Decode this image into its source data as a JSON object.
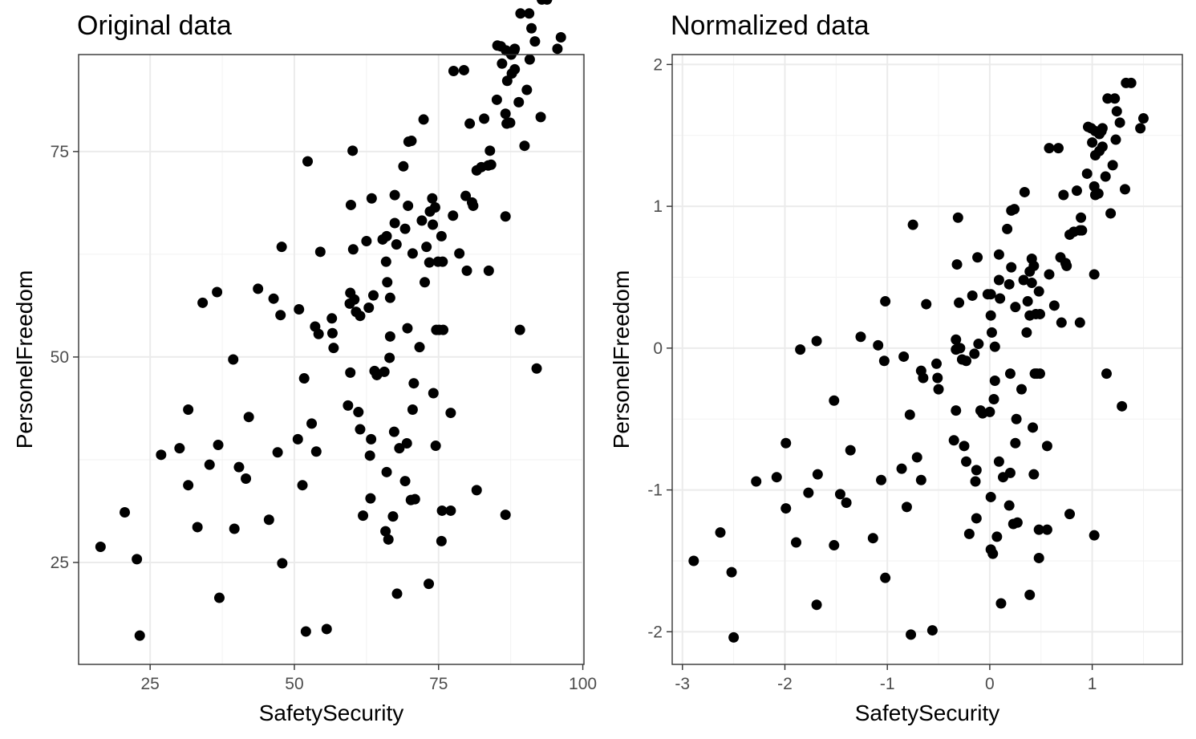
{
  "chart_data": [
    {
      "type": "scatter",
      "title": "Original data",
      "xlabel": "SafetySecurity",
      "ylabel": "PersonelFreedom",
      "xlim": [
        12.6,
        100.2
      ],
      "ylim": [
        12.6,
        86.8
      ],
      "xticks": [
        25,
        50,
        75,
        100
      ],
      "yticks": [
        25,
        50,
        75
      ],
      "grid": true,
      "points": [
        [
          16.4,
          26.9
        ],
        [
          20.6,
          31.1
        ],
        [
          22.7,
          25.4
        ],
        [
          23.2,
          16.1
        ],
        [
          26.9,
          38.1
        ],
        [
          30.1,
          38.9
        ],
        [
          31.6,
          43.6
        ],
        [
          31.6,
          34.4
        ],
        [
          33.2,
          29.3
        ],
        [
          34.1,
          56.6
        ],
        [
          35.3,
          36.9
        ],
        [
          36.6,
          57.9
        ],
        [
          36.8,
          39.3
        ],
        [
          37.0,
          20.7
        ],
        [
          39.4,
          49.7
        ],
        [
          39.6,
          29.1
        ],
        [
          40.4,
          36.6
        ],
        [
          41.6,
          35.2
        ],
        [
          42.1,
          42.7
        ],
        [
          43.7,
          58.3
        ],
        [
          45.6,
          30.2
        ],
        [
          46.4,
          57.1
        ],
        [
          47.1,
          38.4
        ],
        [
          47.6,
          55.1
        ],
        [
          47.8,
          63.4
        ],
        [
          47.9,
          24.9
        ],
        [
          50.6,
          40.0
        ],
        [
          50.8,
          55.8
        ],
        [
          51.4,
          34.4
        ],
        [
          51.7,
          47.4
        ],
        [
          52.0,
          16.6
        ],
        [
          52.3,
          73.8
        ],
        [
          53.0,
          41.9
        ],
        [
          53.6,
          53.7
        ],
        [
          53.8,
          38.5
        ],
        [
          54.2,
          52.8
        ],
        [
          54.5,
          62.8
        ],
        [
          55.6,
          16.9
        ],
        [
          56.5,
          54.7
        ],
        [
          56.6,
          52.9
        ],
        [
          56.8,
          51.1
        ],
        [
          59.3,
          44.1
        ],
        [
          59.6,
          56.5
        ],
        [
          59.7,
          48.1
        ],
        [
          59.7,
          57.8
        ],
        [
          59.8,
          68.5
        ],
        [
          60.1,
          75.1
        ],
        [
          60.2,
          63.1
        ],
        [
          60.4,
          57.0
        ],
        [
          60.7,
          55.5
        ],
        [
          61.1,
          43.3
        ],
        [
          61.4,
          55.0
        ],
        [
          61.4,
          41.2
        ],
        [
          61.9,
          30.7
        ],
        [
          62.5,
          64.1
        ],
        [
          62.9,
          56.0
        ],
        [
          63.1,
          38.0
        ],
        [
          63.2,
          32.8
        ],
        [
          63.3,
          40.0
        ],
        [
          63.4,
          69.3
        ],
        [
          63.7,
          57.5
        ],
        [
          63.9,
          48.3
        ],
        [
          64.3,
          47.8
        ],
        [
          65.3,
          64.3
        ],
        [
          65.6,
          48.2
        ],
        [
          65.8,
          28.8
        ],
        [
          65.9,
          61.6
        ],
        [
          66.0,
          64.7
        ],
        [
          66.0,
          36.0
        ],
        [
          66.1,
          59.1
        ],
        [
          66.3,
          27.8
        ],
        [
          66.5,
          49.9
        ],
        [
          66.6,
          57.2
        ],
        [
          66.6,
          52.5
        ],
        [
          67.1,
          30.6
        ],
        [
          67.3,
          40.9
        ],
        [
          67.4,
          69.7
        ],
        [
          67.4,
          66.3
        ],
        [
          67.7,
          63.7
        ],
        [
          67.8,
          21.2
        ],
        [
          68.2,
          38.9
        ],
        [
          68.9,
          73.2
        ],
        [
          69.2,
          34.9
        ],
        [
          69.2,
          65.6
        ],
        [
          69.5,
          39.5
        ],
        [
          69.6,
          53.5
        ],
        [
          69.7,
          68.4
        ],
        [
          69.8,
          76.2
        ],
        [
          70.2,
          32.6
        ],
        [
          70.3,
          76.3
        ],
        [
          70.5,
          43.6
        ],
        [
          70.5,
          62.6
        ],
        [
          70.7,
          46.8
        ],
        [
          70.9,
          32.7
        ],
        [
          71.7,
          51.2
        ],
        [
          72.1,
          66.6
        ],
        [
          72.4,
          78.9
        ],
        [
          72.6,
          59.1
        ],
        [
          72.9,
          63.4
        ],
        [
          73.3,
          22.4
        ],
        [
          73.4,
          61.5
        ],
        [
          73.5,
          67.7
        ],
        [
          73.9,
          69.3
        ],
        [
          74.0,
          66.1
        ],
        [
          74.1,
          45.6
        ],
        [
          74.4,
          68.2
        ],
        [
          74.5,
          39.2
        ],
        [
          74.6,
          53.3
        ],
        [
          74.9,
          61.6
        ],
        [
          75.1,
          53.3
        ],
        [
          75.5,
          27.6
        ],
        [
          75.5,
          64.7
        ],
        [
          75.6,
          31.3
        ],
        [
          75.7,
          61.6
        ],
        [
          75.8,
          53.3
        ],
        [
          77.1,
          31.3
        ],
        [
          77.1,
          43.2
        ],
        [
          77.5,
          67.2
        ],
        [
          77.6,
          84.8
        ],
        [
          78.6,
          62.6
        ],
        [
          79.4,
          84.9
        ],
        [
          79.7,
          69.6
        ],
        [
          79.9,
          60.5
        ],
        [
          80.4,
          78.4
        ],
        [
          80.8,
          68.8
        ],
        [
          81.0,
          68.4
        ],
        [
          81.6,
          33.8
        ],
        [
          81.6,
          72.7
        ],
        [
          82.4,
          73.1
        ],
        [
          82.9,
          79.0
        ],
        [
          83.6,
          73.3
        ],
        [
          83.7,
          60.5
        ],
        [
          83.9,
          75.1
        ],
        [
          84.1,
          73.4
        ],
        [
          85.1,
          81.3
        ],
        [
          85.2,
          87.9
        ],
        [
          85.8,
          87.8
        ],
        [
          86.0,
          85.7
        ],
        [
          86.6,
          30.8
        ],
        [
          86.6,
          67.1
        ],
        [
          86.6,
          79.6
        ],
        [
          86.7,
          87.3
        ],
        [
          86.8,
          78.4
        ],
        [
          86.9,
          83.6
        ],
        [
          87.4,
          78.5
        ],
        [
          87.6,
          86.8
        ],
        [
          87.7,
          84.5
        ],
        [
          88.1,
          87.3
        ],
        [
          88.2,
          87.5
        ],
        [
          88.2,
          85.0
        ],
        [
          88.9,
          81.0
        ],
        [
          89.1,
          53.3
        ],
        [
          89.2,
          91.8
        ],
        [
          89.9,
          75.7
        ],
        [
          90.3,
          82.5
        ],
        [
          90.7,
          91.8
        ],
        [
          90.8,
          86.2
        ],
        [
          91.1,
          90.0
        ],
        [
          91.7,
          88.4
        ],
        [
          92.0,
          48.6
        ],
        [
          92.7,
          79.2
        ],
        [
          92.9,
          93.5
        ],
        [
          93.8,
          93.5
        ],
        [
          95.6,
          87.5
        ],
        [
          96.2,
          88.9
        ]
      ]
    },
    {
      "type": "scatter",
      "title": "Normalized data",
      "xlabel": "SafetySecurity",
      "ylabel": "PersonelFreedom",
      "xlim": [
        -3.1,
        1.88
      ],
      "ylim": [
        -2.23,
        2.07
      ],
      "xticks": [
        -3,
        -2,
        -1,
        0,
        1
      ],
      "yticks": [
        -2,
        -1,
        0,
        1,
        2
      ],
      "grid": true,
      "points": [
        [
          -2.89,
          -1.5
        ],
        [
          -2.63,
          -1.3
        ],
        [
          -2.52,
          -1.58
        ],
        [
          -2.5,
          -2.04
        ],
        [
          -2.28,
          -0.94
        ],
        [
          -2.08,
          -0.91
        ],
        [
          -1.99,
          -0.67
        ],
        [
          -1.99,
          -1.13
        ],
        [
          -1.89,
          -1.37
        ],
        [
          -1.85,
          -0.01
        ],
        [
          -1.77,
          -1.02
        ],
        [
          -1.69,
          0.05
        ],
        [
          -1.68,
          -0.89
        ],
        [
          -1.69,
          -1.81
        ],
        [
          -1.52,
          -0.37
        ],
        [
          -1.52,
          -1.39
        ],
        [
          -1.46,
          -1.03
        ],
        [
          -1.4,
          -1.09
        ],
        [
          -1.36,
          -0.72
        ],
        [
          -1.26,
          0.08
        ],
        [
          -1.14,
          -1.34
        ],
        [
          -1.09,
          0.02
        ],
        [
          -1.06,
          -0.93
        ],
        [
          -1.03,
          -0.09
        ],
        [
          -1.02,
          0.33
        ],
        [
          -1.02,
          -1.62
        ],
        [
          -0.86,
          -0.85
        ],
        [
          -0.84,
          -0.06
        ],
        [
          -0.81,
          -1.12
        ],
        [
          -0.78,
          -0.47
        ],
        [
          -0.77,
          -2.02
        ],
        [
          -0.75,
          0.87
        ],
        [
          -0.71,
          -0.77
        ],
        [
          -0.67,
          -0.16
        ],
        [
          -0.67,
          -0.93
        ],
        [
          -0.65,
          -0.21
        ],
        [
          -0.62,
          0.31
        ],
        [
          -0.56,
          -1.99
        ],
        [
          -0.52,
          -0.11
        ],
        [
          -0.51,
          -0.21
        ],
        [
          -0.5,
          -0.29
        ],
        [
          -0.35,
          -0.65
        ],
        [
          -0.33,
          -0.01
        ],
        [
          -0.33,
          -0.44
        ],
        [
          -0.33,
          0.06
        ],
        [
          -0.32,
          0.59
        ],
        [
          -0.31,
          0.92
        ],
        [
          -0.3,
          0.32
        ],
        [
          -0.29,
          0.0
        ],
        [
          -0.27,
          -0.08
        ],
        [
          -0.25,
          -0.69
        ],
        [
          -0.23,
          -0.09
        ],
        [
          -0.23,
          -0.8
        ],
        [
          -0.2,
          -1.31
        ],
        [
          -0.17,
          0.37
        ],
        [
          -0.15,
          -0.04
        ],
        [
          -0.14,
          -0.94
        ],
        [
          -0.13,
          -1.2
        ],
        [
          -0.13,
          -0.86
        ],
        [
          -0.12,
          0.64
        ],
        [
          -0.11,
          0.03
        ],
        [
          -0.09,
          -0.44
        ],
        [
          -0.07,
          -0.46
        ],
        [
          -0.02,
          0.38
        ],
        [
          0.0,
          -0.45
        ],
        [
          0.01,
          -1.42
        ],
        [
          0.01,
          0.23
        ],
        [
          0.01,
          0.38
        ],
        [
          0.01,
          -1.05
        ],
        [
          0.02,
          0.11
        ],
        [
          0.03,
          -1.45
        ],
        [
          0.04,
          -0.36
        ],
        [
          0.05,
          0.01
        ],
        [
          0.05,
          -0.23
        ],
        [
          0.07,
          -1.33
        ],
        [
          0.09,
          -0.8
        ],
        [
          0.09,
          0.66
        ],
        [
          0.09,
          0.48
        ],
        [
          0.1,
          0.35
        ],
        [
          0.11,
          -1.8
        ],
        [
          0.13,
          -0.91
        ],
        [
          0.17,
          0.84
        ],
        [
          0.19,
          -1.11
        ],
        [
          0.19,
          0.45
        ],
        [
          0.2,
          -0.88
        ],
        [
          0.2,
          -0.18
        ],
        [
          0.21,
          0.57
        ],
        [
          0.21,
          0.97
        ],
        [
          0.23,
          -1.24
        ],
        [
          0.24,
          0.98
        ],
        [
          0.25,
          -0.67
        ],
        [
          0.25,
          0.29
        ],
        [
          0.26,
          -0.5
        ],
        [
          0.27,
          -1.23
        ],
        [
          0.31,
          -0.29
        ],
        [
          0.33,
          0.48
        ],
        [
          0.34,
          1.1
        ],
        [
          0.36,
          0.11
        ],
        [
          0.37,
          0.33
        ],
        [
          0.39,
          -1.74
        ],
        [
          0.39,
          0.23
        ],
        [
          0.39,
          0.54
        ],
        [
          0.41,
          0.63
        ],
        [
          0.41,
          0.46
        ],
        [
          0.42,
          -0.56
        ],
        [
          0.43,
          0.58
        ],
        [
          0.43,
          -0.89
        ],
        [
          0.44,
          -0.18
        ],
        [
          0.45,
          0.24
        ],
        [
          0.46,
          -0.18
        ],
        [
          0.48,
          -1.48
        ],
        [
          0.48,
          0.4
        ],
        [
          0.48,
          -1.28
        ],
        [
          0.49,
          0.24
        ],
        [
          0.49,
          -0.18
        ],
        [
          0.56,
          -1.28
        ],
        [
          0.56,
          -0.69
        ],
        [
          0.58,
          0.52
        ],
        [
          0.58,
          1.41
        ],
        [
          0.63,
          0.3
        ],
        [
          0.67,
          1.41
        ],
        [
          0.69,
          0.64
        ],
        [
          0.7,
          0.18
        ],
        [
          0.72,
          1.08
        ],
        [
          0.74,
          0.6
        ],
        [
          0.75,
          0.58
        ],
        [
          0.78,
          -1.17
        ],
        [
          0.78,
          0.8
        ],
        [
          0.82,
          0.82
        ],
        [
          0.85,
          1.11
        ],
        [
          0.88,
          0.83
        ],
        [
          0.88,
          0.18
        ],
        [
          0.89,
          0.92
        ],
        [
          0.9,
          0.83
        ],
        [
          0.95,
          1.23
        ],
        [
          0.96,
          1.56
        ],
        [
          0.99,
          1.55
        ],
        [
          1.0,
          1.45
        ],
        [
          1.02,
          -1.32
        ],
        [
          1.02,
          0.52
        ],
        [
          1.02,
          1.14
        ],
        [
          1.03,
          1.53
        ],
        [
          1.03,
          1.08
        ],
        [
          1.03,
          1.36
        ],
        [
          1.06,
          1.09
        ],
        [
          1.07,
          1.51
        ],
        [
          1.07,
          1.39
        ],
        [
          1.09,
          1.53
        ],
        [
          1.1,
          1.55
        ],
        [
          1.1,
          1.42
        ],
        [
          1.13,
          1.21
        ],
        [
          1.14,
          -0.18
        ],
        [
          1.15,
          1.76
        ],
        [
          1.18,
          0.95
        ],
        [
          1.2,
          1.29
        ],
        [
          1.22,
          1.76
        ],
        [
          1.23,
          1.47
        ],
        [
          1.24,
          1.67
        ],
        [
          1.27,
          1.59
        ],
        [
          1.29,
          -0.41
        ],
        [
          1.32,
          1.12
        ],
        [
          1.33,
          1.87
        ],
        [
          1.38,
          1.87
        ],
        [
          1.47,
          1.55
        ],
        [
          1.5,
          1.62
        ]
      ]
    }
  ]
}
